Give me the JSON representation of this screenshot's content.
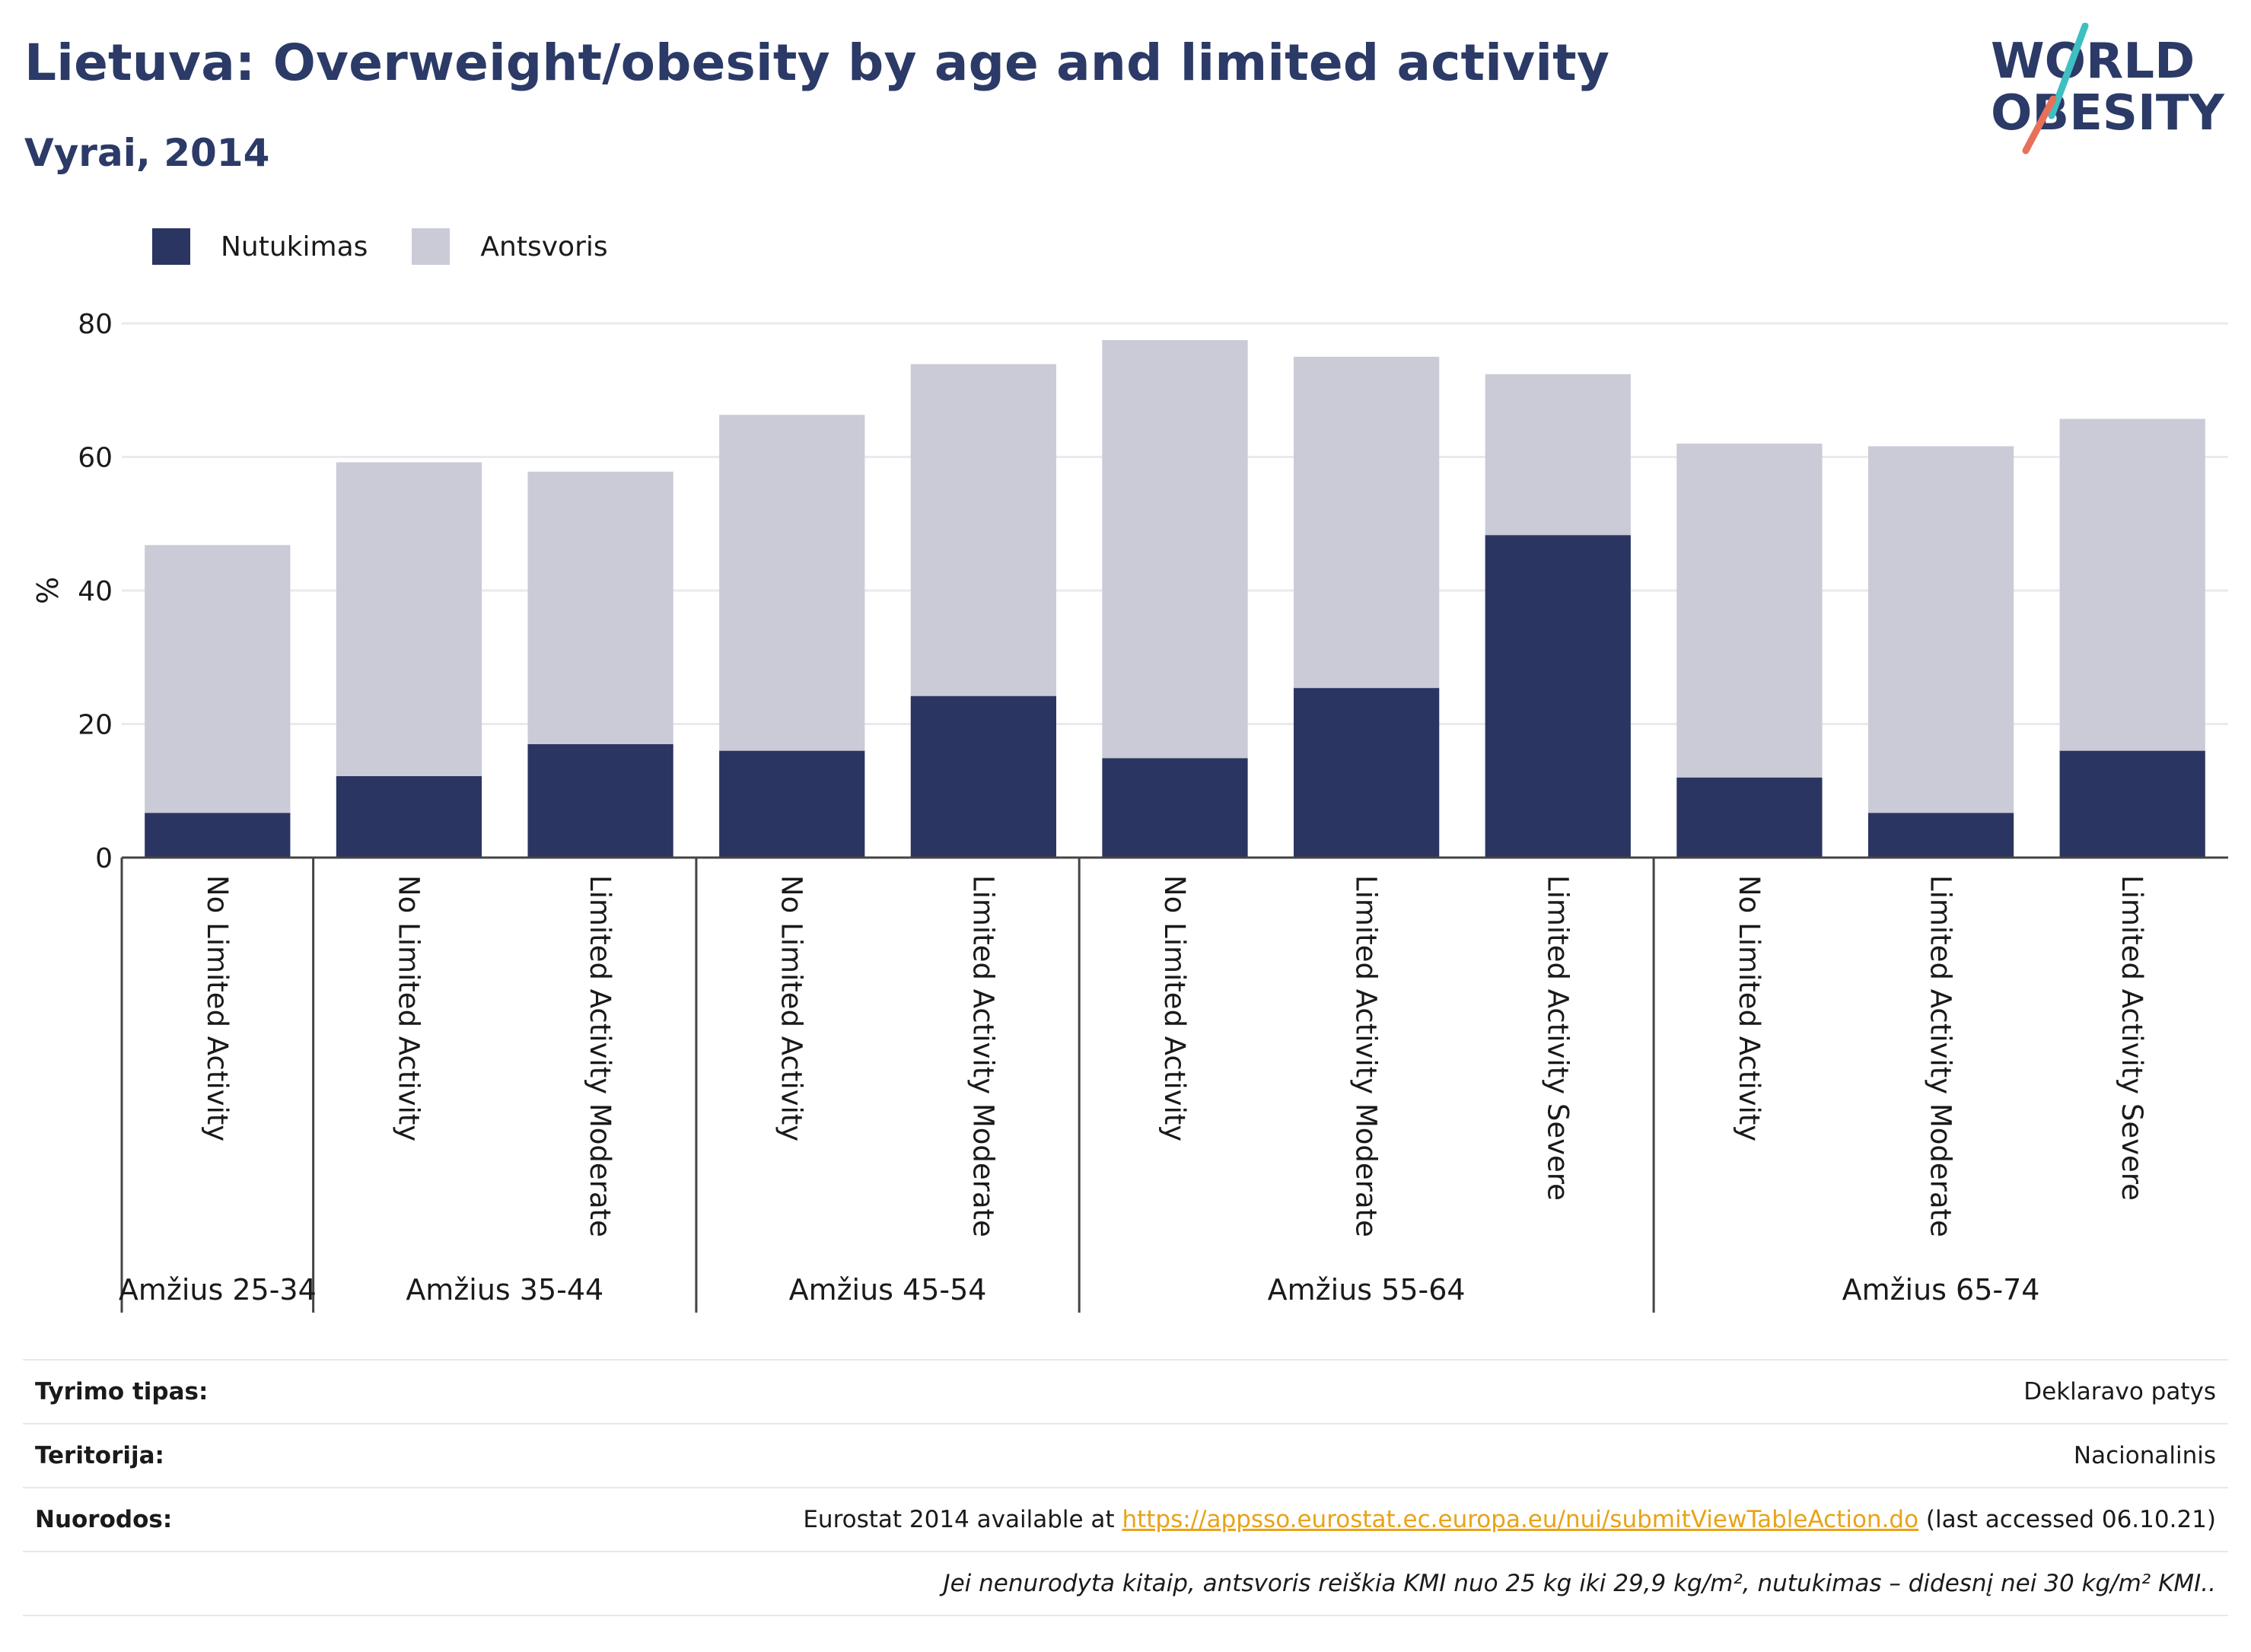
{
  "header": {
    "title": "Lietuva: Overweight/obesity by age and limited activity",
    "subtitle": "Vyrai, 2014"
  },
  "logo": {
    "line1": "WORLD",
    "line2": "OBESITY",
    "colors": {
      "text": "#2b3a67",
      "slash_top": "#3fbfc1",
      "slash_bottom": "#e8705a"
    }
  },
  "legend": [
    {
      "label": "Nutukimas",
      "color": "#2b3562"
    },
    {
      "label": "Antsvoris",
      "color": "#cacbd7"
    }
  ],
  "chart_data": {
    "type": "bar",
    "stacked": true,
    "ylabel": "%",
    "xlabel": "",
    "ylim": [
      0,
      80
    ],
    "yticks": [
      0,
      20,
      40,
      60,
      80
    ],
    "grid": true,
    "legend_position": "top-left",
    "groups": [
      {
        "label": "Amžius 25-34",
        "categories": [
          "No Limited Activity"
        ]
      },
      {
        "label": "Amžius 35-44",
        "categories": [
          "No Limited Activity",
          "Limited Activity Moderate"
        ]
      },
      {
        "label": "Amžius 45-54",
        "categories": [
          "No Limited Activity",
          "Limited Activity Moderate"
        ]
      },
      {
        "label": "Amžius 55-64",
        "categories": [
          "No Limited Activity",
          "Limited Activity Moderate",
          "Limited Activity Severe"
        ]
      },
      {
        "label": "Amžius 65-74",
        "categories": [
          "No Limited Activity",
          "Limited Activity Moderate",
          "Limited Activity Severe"
        ]
      }
    ],
    "series": [
      {
        "name": "Nutukimas",
        "color": "#2b3562",
        "values": [
          6.7,
          12.2,
          17.0,
          16.0,
          24.2,
          14.9,
          25.4,
          48.3,
          12.0,
          6.7,
          16.0
        ]
      },
      {
        "name": "Antsvoris",
        "color": "#cacbd7",
        "values": [
          40.1,
          47.0,
          40.8,
          50.3,
          49.7,
          62.6,
          49.6,
          24.1,
          50.0,
          54.9,
          49.7
        ]
      }
    ]
  },
  "info": [
    {
      "label": "Tyrimo tipas:",
      "value": "Deklaravo patys"
    },
    {
      "label": "Teritorija:",
      "value": "Nacionalinis"
    },
    {
      "label": "Nuorodos:",
      "value_prefix": "Eurostat 2014 available at ",
      "link": "https://appsso.eurostat.ec.europa.eu/nui/submitViewTableAction.do",
      "value_suffix": " (last accessed 06.10.21)"
    },
    {
      "label": "",
      "value": "Jei nenurodyta kitaip, antsvoris reiškia KMI nuo 25 kg iki 29,9 kg/m², nutukimas – didesnį nei 30 kg/m² KMI.."
    }
  ]
}
